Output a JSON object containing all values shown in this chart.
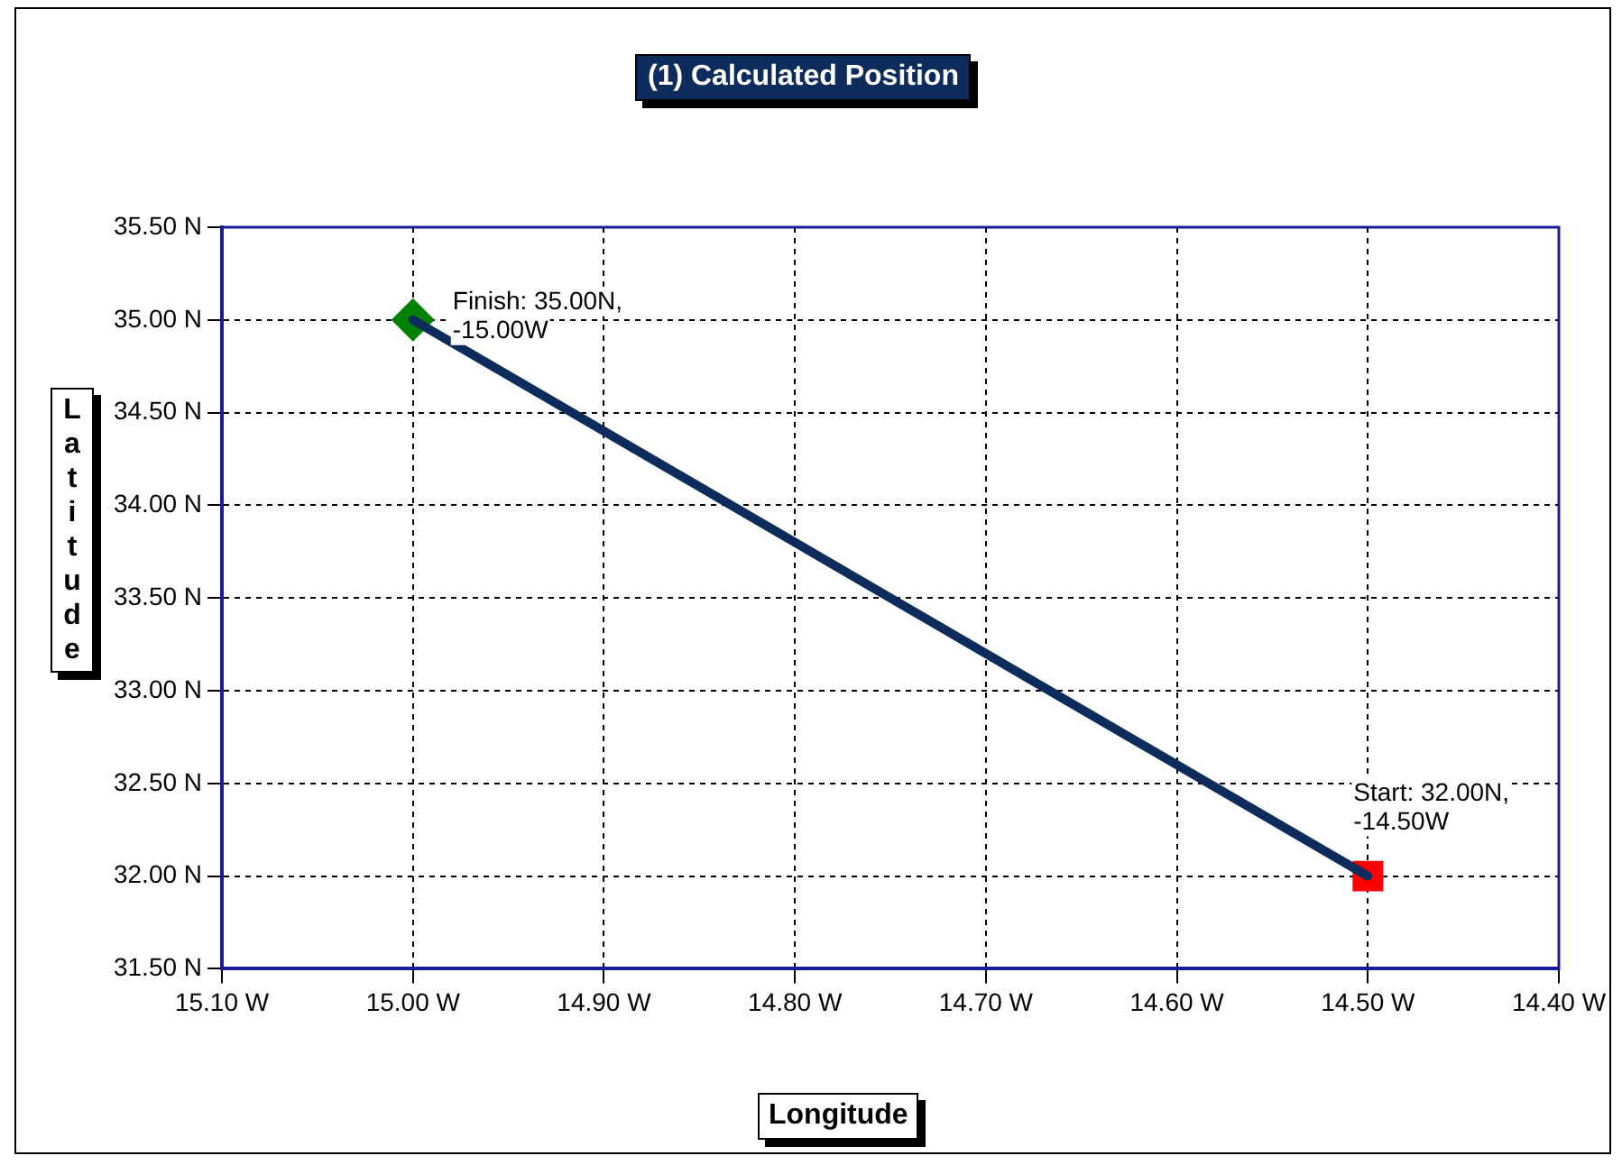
{
  "chart_data": {
    "type": "line",
    "title": "(1) Calculated Position",
    "xlabel": "Longitude",
    "ylabel": "Latitude",
    "xlim": [
      -15.1,
      -14.4
    ],
    "xticks": [
      {
        "value": -15.1,
        "label": "15.10 W"
      },
      {
        "value": -15.0,
        "label": "15.00 W"
      },
      {
        "value": -14.9,
        "label": "14.90 W"
      },
      {
        "value": -14.8,
        "label": "14.80 W"
      },
      {
        "value": -14.7,
        "label": "14.70 W"
      },
      {
        "value": -14.6,
        "label": "14.60 W"
      },
      {
        "value": -14.5,
        "label": "14.50 W"
      },
      {
        "value": -14.4,
        "label": "14.40 W"
      }
    ],
    "ylim": [
      31.5,
      35.5
    ],
    "yticks": [
      {
        "value": 31.5,
        "label": "31.50 N"
      },
      {
        "value": 32.0,
        "label": "32.00 N"
      },
      {
        "value": 32.5,
        "label": "32.50 N"
      },
      {
        "value": 33.0,
        "label": "33.00 N"
      },
      {
        "value": 33.5,
        "label": "33.50 N"
      },
      {
        "value": 34.0,
        "label": "34.00 N"
      },
      {
        "value": 34.5,
        "label": "34.50 N"
      },
      {
        "value": 35.0,
        "label": "35.00 N"
      },
      {
        "value": 35.5,
        "label": "35.50 N"
      }
    ],
    "series": [
      {
        "type": "line",
        "color": "#0d2c5c",
        "values": [
          35.0,
          32.0
        ],
        "marker": "none"
      },
      {
        "type": "scatter",
        "color": "#008000",
        "values": [
          35.0,
          null
        ],
        "marker": "diamond"
      },
      {
        "type": "scatter",
        "color": "#ff0000",
        "values": [
          null,
          32.0
        ],
        "marker": "square"
      }
    ],
    "x": [
      -15.0,
      -14.5
    ],
    "annotations": [
      {
        "text": "Finish: 35.00N, -15.00W",
        "x": -15.0,
        "y": 35.0
      },
      {
        "text": "Start: 32.00N, -14.50W",
        "x": -14.5,
        "y": 32.0
      }
    ],
    "grid": true,
    "legend": false
  }
}
